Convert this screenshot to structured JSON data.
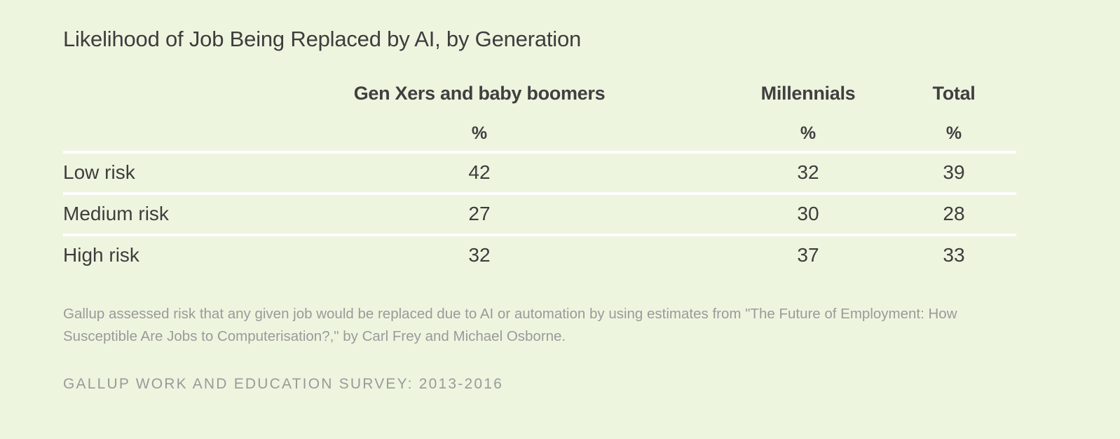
{
  "chart_data": {
    "type": "table",
    "title": "Likelihood of Job Being Replaced by AI, by Generation",
    "columns": [
      "Gen Xers and baby boomers",
      "Millennials",
      "Total"
    ],
    "unit": "%",
    "rows": [
      {
        "label": "Low risk",
        "values": [
          42,
          32,
          39
        ]
      },
      {
        "label": "Medium risk",
        "values": [
          27,
          30,
          28
        ]
      },
      {
        "label": "High risk",
        "values": [
          32,
          37,
          33
        ]
      }
    ],
    "note": "Gallup assessed risk that any given job would be replaced due to AI or automation by using estimates from \"The Future of Employment: How Susceptible Are Jobs to Computerisation?,\" by Carl Frey and Michael Osborne.",
    "source": "GALLUP WORK AND EDUCATION SURVEY: 2013-2016"
  }
}
